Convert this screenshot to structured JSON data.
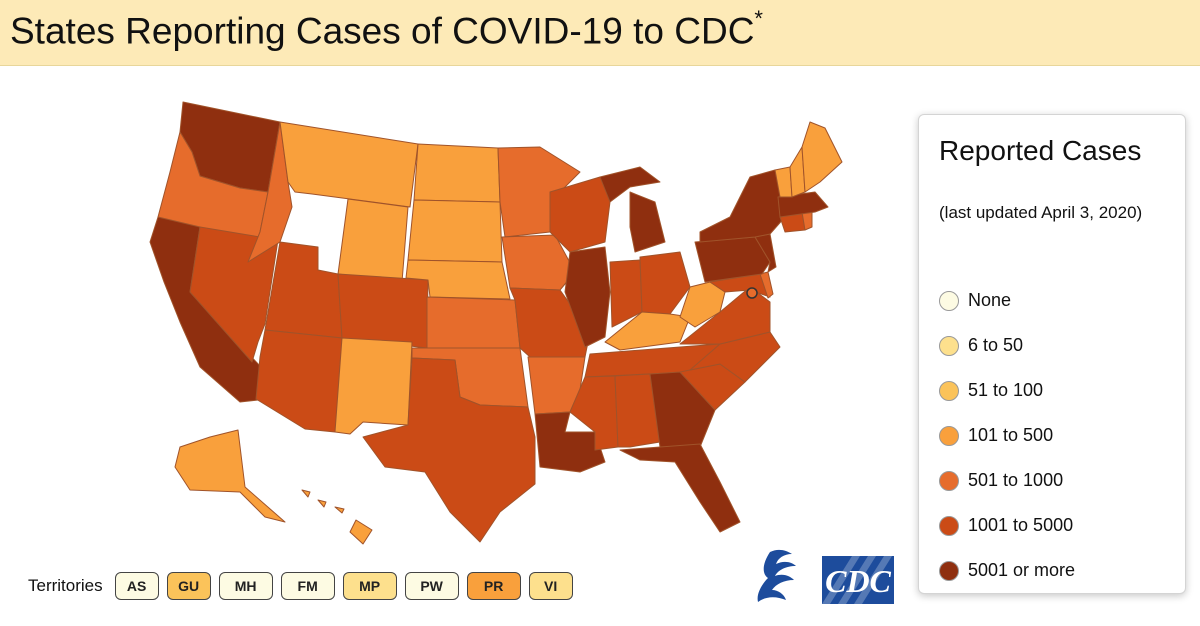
{
  "header": {
    "title": "States Reporting Cases of COVID-19 to CDC",
    "asterisk": "*"
  },
  "legend": {
    "title": "Reported Cases",
    "updated": "(last updated April 3, 2020)",
    "items": [
      {
        "label": "None",
        "color": "#fdfbe3"
      },
      {
        "label": "6 to 50",
        "color": "#fde08d"
      },
      {
        "label": "51 to 100",
        "color": "#fbc35a"
      },
      {
        "label": "101 to 500",
        "color": "#f9a03c"
      },
      {
        "label": "501 to 1000",
        "color": "#e66c2c"
      },
      {
        "label": "1001 to 5000",
        "color": "#cb4b16"
      },
      {
        "label": "5001 or more",
        "color": "#8f2f0f"
      }
    ]
  },
  "territories": {
    "label": "Territories",
    "items": [
      {
        "code": "AS",
        "color": "#fdfbe3"
      },
      {
        "code": "GU",
        "color": "#fbc35a"
      },
      {
        "code": "MH",
        "color": "#fdfbe3"
      },
      {
        "code": "FM",
        "color": "#fdfbe3"
      },
      {
        "code": "MP",
        "color": "#fde08d"
      },
      {
        "code": "PW",
        "color": "#fdfbe3"
      },
      {
        "code": "PR",
        "color": "#f9a03c"
      },
      {
        "code": "VI",
        "color": "#fde08d"
      }
    ]
  },
  "map": {
    "states": [
      {
        "id": "WA",
        "color": "#8f2f0f"
      },
      {
        "id": "OR",
        "color": "#e66c2c"
      },
      {
        "id": "CA",
        "color": "#8f2f0f"
      },
      {
        "id": "NV",
        "color": "#cb4b16"
      },
      {
        "id": "ID",
        "color": "#e66c2c"
      },
      {
        "id": "MT",
        "color": "#f9a03c"
      },
      {
        "id": "WY",
        "color": "#f9a03c"
      },
      {
        "id": "UT",
        "color": "#cb4b16"
      },
      {
        "id": "AZ",
        "color": "#cb4b16"
      },
      {
        "id": "CO",
        "color": "#cb4b16"
      },
      {
        "id": "NM",
        "color": "#f9a03c"
      },
      {
        "id": "ND",
        "color": "#f9a03c"
      },
      {
        "id": "SD",
        "color": "#f9a03c"
      },
      {
        "id": "NE",
        "color": "#f9a03c"
      },
      {
        "id": "KS",
        "color": "#e66c2c"
      },
      {
        "id": "OK",
        "color": "#e66c2c"
      },
      {
        "id": "TX",
        "color": "#cb4b16"
      },
      {
        "id": "MN",
        "color": "#e66c2c"
      },
      {
        "id": "IA",
        "color": "#e66c2c"
      },
      {
        "id": "MO",
        "color": "#cb4b16"
      },
      {
        "id": "AR",
        "color": "#e66c2c"
      },
      {
        "id": "LA",
        "color": "#8f2f0f"
      },
      {
        "id": "WI",
        "color": "#cb4b16"
      },
      {
        "id": "IL",
        "color": "#8f2f0f"
      },
      {
        "id": "MI",
        "color": "#8f2f0f"
      },
      {
        "id": "IN",
        "color": "#cb4b16"
      },
      {
        "id": "OH",
        "color": "#cb4b16"
      },
      {
        "id": "KY",
        "color": "#f9a03c"
      },
      {
        "id": "TN",
        "color": "#cb4b16"
      },
      {
        "id": "MS",
        "color": "#cb4b16"
      },
      {
        "id": "AL",
        "color": "#cb4b16"
      },
      {
        "id": "GA",
        "color": "#8f2f0f"
      },
      {
        "id": "FL",
        "color": "#8f2f0f"
      },
      {
        "id": "SC",
        "color": "#cb4b16"
      },
      {
        "id": "NC",
        "color": "#cb4b16"
      },
      {
        "id": "VA",
        "color": "#cb4b16"
      },
      {
        "id": "WV",
        "color": "#f9a03c"
      },
      {
        "id": "MD",
        "color": "#cb4b16"
      },
      {
        "id": "DE",
        "color": "#e66c2c"
      },
      {
        "id": "PA",
        "color": "#8f2f0f"
      },
      {
        "id": "NJ",
        "color": "#8f2f0f"
      },
      {
        "id": "NY",
        "color": "#8f2f0f"
      },
      {
        "id": "CT",
        "color": "#cb4b16"
      },
      {
        "id": "RI",
        "color": "#e66c2c"
      },
      {
        "id": "MA",
        "color": "#8f2f0f"
      },
      {
        "id": "VT",
        "color": "#f9a03c"
      },
      {
        "id": "NH",
        "color": "#f9a03c"
      },
      {
        "id": "ME",
        "color": "#f9a03c"
      },
      {
        "id": "AK",
        "color": "#f9a03c"
      },
      {
        "id": "HI",
        "color": "#f9a03c"
      },
      {
        "id": "DC",
        "color": "#e66c2c"
      }
    ]
  }
}
